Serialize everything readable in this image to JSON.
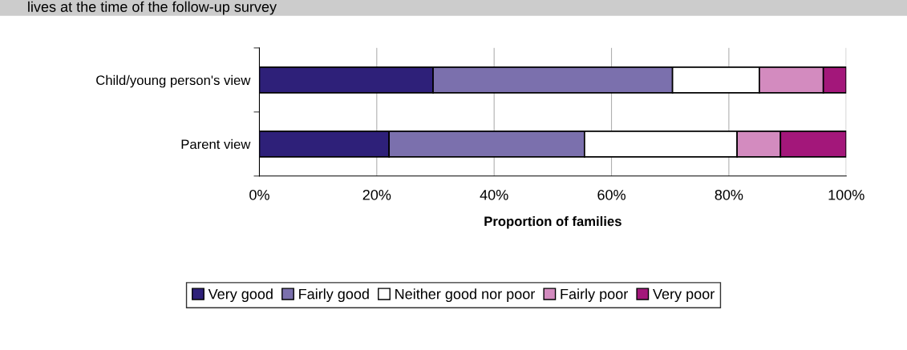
{
  "chart_data": {
    "type": "bar",
    "title": "lives at the time of the follow-up survey",
    "orientation": "horizontal",
    "stacked": true,
    "categories": [
      "Child/young person's view",
      "Parent view"
    ],
    "series": [
      {
        "name": "Very good",
        "color": "#2e2079",
        "values": [
          29.6,
          22.1
        ]
      },
      {
        "name": "Fairly good",
        "color": "#7b70ad",
        "values": [
          40.8,
          33.3
        ]
      },
      {
        "name": "Neither good nor poor",
        "color": "#ffffff",
        "values": [
          14.8,
          26.0
        ]
      },
      {
        "name": "Fairly poor",
        "color": "#d38bbf",
        "values": [
          10.9,
          7.4
        ]
      },
      {
        "name": "Very poor",
        "color": "#a3177a",
        "values": [
          3.9,
          11.2
        ]
      }
    ],
    "xlabel": "Proportion of families",
    "xlim": [
      0,
      100
    ],
    "xticks": [
      {
        "value": 0,
        "label": "0%"
      },
      {
        "value": 20,
        "label": "20%"
      },
      {
        "value": 40,
        "label": "40%"
      },
      {
        "value": 60,
        "label": "60%"
      },
      {
        "value": 80,
        "label": "80%"
      },
      {
        "value": 100,
        "label": "100%"
      }
    ],
    "grid": "x",
    "legend": "bottom"
  }
}
